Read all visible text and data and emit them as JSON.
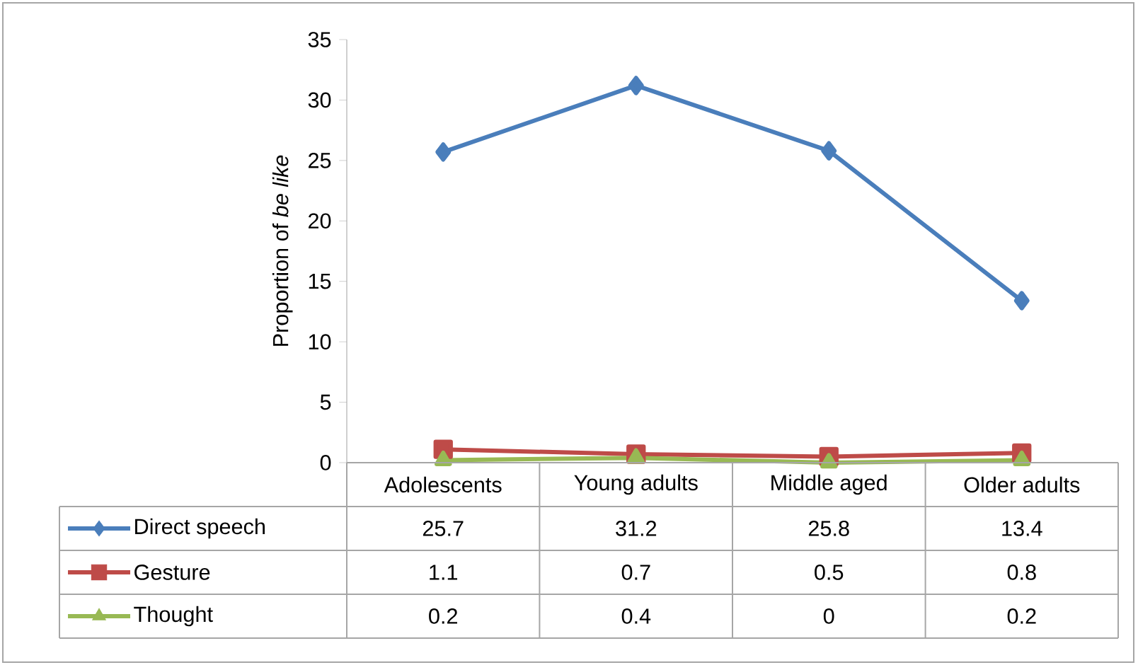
{
  "chart_data": {
    "type": "line",
    "ylabel": "Proportion of *be like*",
    "categories": [
      "Adolescents",
      "Young adults",
      "Middle aged",
      "Older adults"
    ],
    "series": [
      {
        "name": "Direct speech",
        "color": "#4a7ebb",
        "marker": "diamond",
        "values": [
          25.7,
          31.2,
          25.8,
          13.4
        ]
      },
      {
        "name": "Gesture",
        "color": "#be4b48",
        "marker": "square",
        "values": [
          1.1,
          0.7,
          0.5,
          0.8
        ]
      },
      {
        "name": "Thought",
        "color": "#98b954",
        "marker": "triangle",
        "values": [
          0.2,
          0.4,
          0,
          0.2
        ]
      }
    ],
    "ylim": [
      0,
      35
    ],
    "yticks": [
      0,
      5,
      10,
      15,
      20,
      25,
      30,
      35
    ],
    "data_labels": true,
    "legend": "bottom",
    "grid": false
  }
}
